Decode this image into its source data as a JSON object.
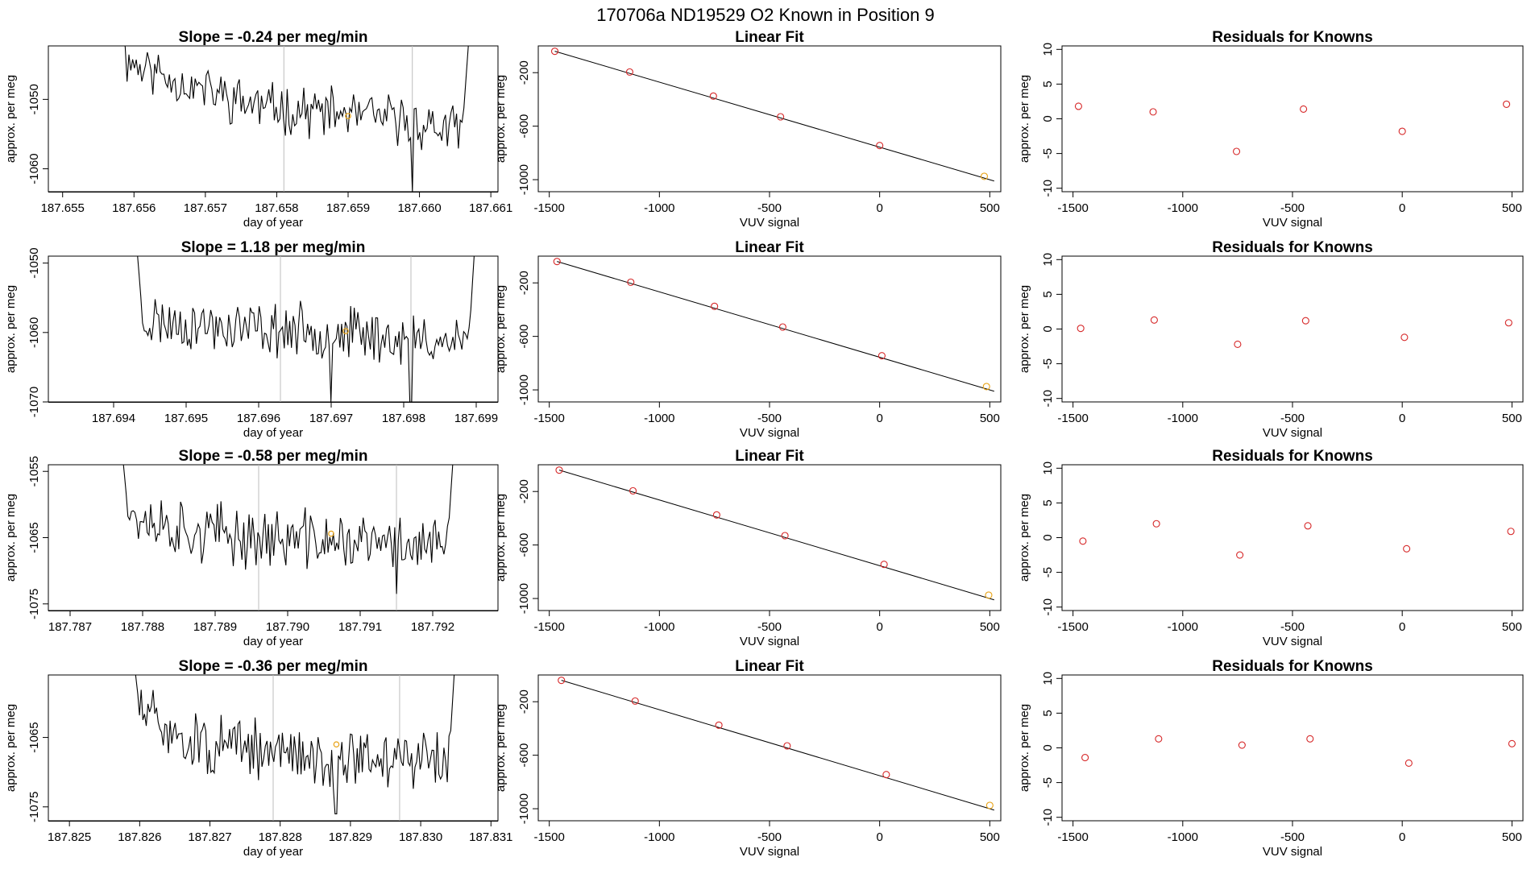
{
  "suptitle": "170706a     ND19529   O2 Known in Position  9",
  "colors": {
    "trace": "#000000",
    "marker_orange": "#e8a317",
    "marker_red": "#d62728",
    "vline": "#bdbdbd",
    "fit": "#000000"
  },
  "chart_data": [
    {
      "type": "line",
      "row": 0,
      "panel": "timeseries",
      "title": "Slope =  -0.24  per meg/min",
      "xlabel": "day of year",
      "ylabel": "approx. per meg",
      "xlim": [
        187.6548,
        187.6611
      ],
      "ylim": [
        -1063.3,
        -1042.3
      ],
      "xticks": [
        187.655,
        187.656,
        187.657,
        187.658,
        187.659,
        187.66,
        187.661
      ],
      "xtick_labels": [
        "187.655",
        "187.656",
        "187.657",
        "187.658",
        "187.659",
        "187.660",
        "187.661"
      ],
      "yticks": [
        -1050,
        -1060
      ],
      "ytick_labels": [
        "-1050",
        "-1060"
      ],
      "vlines": [
        187.6581,
        187.6599
      ],
      "series_start": 187.6558,
      "series_end": 187.6607,
      "trend": [
        -1044,
        -1048,
        -1051,
        -1052,
        -1053,
        -1055
      ],
      "levels": [
        -1051.5,
        -1053.5,
        -1055.5
      ],
      "spikes": {
        "start": -1038,
        "end": -1040
      },
      "noise": 2.8,
      "seed": 11,
      "dips": [
        {
          "x": 187.6599,
          "y": -1063.3
        }
      ],
      "marker": {
        "x": 187.659,
        "y": -1052.4
      }
    },
    {
      "type": "line",
      "row": 1,
      "panel": "timeseries",
      "title": "Slope =  1.18  per meg/min",
      "xlabel": "day of year",
      "ylabel": "approx. per meg",
      "xlim": [
        187.6931,
        187.6993
      ],
      "ylim": [
        -1070,
        -1049
      ],
      "xticks": [
        187.694,
        187.695,
        187.696,
        187.697,
        187.698,
        187.699
      ],
      "xtick_labels": [
        "187.694",
        "187.695",
        "187.696",
        "187.697",
        "187.698",
        "187.699"
      ],
      "yticks": [
        -1050,
        -1060,
        -1070
      ],
      "ytick_labels": [
        "-1050",
        "-1060",
        "-1070"
      ],
      "vlines": [
        187.6963,
        187.6981
      ],
      "series_start": 187.6943,
      "series_end": 187.699,
      "trend": [
        -1058,
        -1059,
        -1059.5,
        -1060,
        -1061,
        -1061
      ],
      "levels": [
        -1059,
        -1059.5,
        -1060.5
      ],
      "spikes": {
        "start": -1045,
        "end": -1044
      },
      "noise": 3.0,
      "seed": 23,
      "dips": [
        {
          "x": 187.697,
          "y": -1070
        },
        {
          "x": 187.6981,
          "y": -1070
        }
      ],
      "marker": {
        "x": 187.6972,
        "y": -1059.8
      }
    },
    {
      "type": "line",
      "row": 2,
      "panel": "timeseries",
      "title": "Slope =  -0.58  per meg/min",
      "xlabel": "day of year",
      "ylabel": "approx. per meg",
      "xlim": [
        187.7867,
        187.7929
      ],
      "ylim": [
        -1076,
        -1054
      ],
      "xticks": [
        187.787,
        187.788,
        187.789,
        187.79,
        187.791,
        187.792
      ],
      "xtick_labels": [
        "187.787",
        "187.788",
        "187.789",
        "187.790",
        "187.791",
        "187.792"
      ],
      "yticks": [
        -1055,
        -1065,
        -1075
      ],
      "ytick_labels": [
        "-1055",
        "-1065",
        "-1075"
      ],
      "vlines": [
        187.7896,
        187.7915
      ],
      "series_start": 187.7877,
      "series_end": 187.7923,
      "trend": [
        -1061,
        -1064,
        -1065,
        -1065.5,
        -1066,
        -1066
      ],
      "levels": [
        -1064.5,
        -1065.5,
        -1066
      ],
      "spikes": {
        "start": -1050,
        "end": -1050
      },
      "noise": 3.6,
      "seed": 37,
      "dips": [
        {
          "x": 187.7915,
          "y": -1073.5
        }
      ],
      "marker": {
        "x": 187.7906,
        "y": -1064.4
      }
    },
    {
      "type": "line",
      "row": 3,
      "panel": "timeseries",
      "title": "Slope =  -0.36  per meg/min",
      "xlabel": "day of year",
      "ylabel": "approx. per meg",
      "xlim": [
        187.8247,
        187.8311
      ],
      "ylim": [
        -1077,
        -1056
      ],
      "xticks": [
        187.825,
        187.826,
        187.827,
        187.828,
        187.829,
        187.83,
        187.831
      ],
      "xtick_labels": [
        "187.825",
        "187.826",
        "187.827",
        "187.828",
        "187.829",
        "187.830",
        "187.831"
      ],
      "yticks": [
        -1065,
        -1075
      ],
      "ytick_labels": [
        "-1065",
        "-1075"
      ],
      "vlines": [
        187.8279,
        187.8297
      ],
      "series_start": 187.8259,
      "series_end": 187.8305,
      "trend": [
        -1061,
        -1066,
        -1067,
        -1068,
        -1068,
        -1068
      ],
      "levels": [
        -1066.5,
        -1067.5,
        -1068.5
      ],
      "spikes": {
        "start": -1052,
        "end": -1052
      },
      "noise": 3.4,
      "seed": 51,
      "dips": [
        {
          "x": 187.8288,
          "y": -1076
        }
      ],
      "marker": {
        "x": 187.8288,
        "y": -1066
      }
    },
    {
      "type": "scatter",
      "row": 0,
      "panel": "fit",
      "title": "Linear Fit",
      "xlabel": "VUV signal",
      "ylabel": "approx. per meg",
      "xlim": [
        -1550,
        550
      ],
      "ylim": [
        -1090,
        0
      ],
      "xticks": [
        -1500,
        -1000,
        -500,
        0,
        500
      ],
      "xtick_labels": [
        "-1500",
        "-1000",
        "-500",
        "0",
        "500"
      ],
      "yticks": [
        -200,
        -600,
        -1000
      ],
      "ytick_labels": [
        "-200",
        "-600",
        "-1000"
      ],
      "x": [
        -1475,
        -1135,
        -755,
        -450,
        0,
        475
      ],
      "y": [
        -40,
        -195,
        -375,
        -530,
        -745,
        -975
      ],
      "line": {
        "x": [
          -1475,
          520
        ],
        "y": [
          -40,
          -1010
        ]
      },
      "orange_index": 5
    },
    {
      "type": "scatter",
      "row": 1,
      "panel": "fit",
      "title": "Linear Fit",
      "xlabel": "VUV signal",
      "ylabel": "approx. per meg",
      "xlim": [
        -1550,
        550
      ],
      "ylim": [
        -1090,
        0
      ],
      "xticks": [
        -1500,
        -1000,
        -500,
        0,
        500
      ],
      "xtick_labels": [
        "-1500",
        "-1000",
        "-500",
        "0",
        "500"
      ],
      "yticks": [
        -200,
        -600,
        -1000
      ],
      "ytick_labels": [
        "-200",
        "-600",
        "-1000"
      ],
      "x": [
        -1465,
        -1130,
        -750,
        -440,
        10,
        485
      ],
      "y": [
        -40,
        -195,
        -375,
        -530,
        -745,
        -975
      ],
      "line": {
        "x": [
          -1465,
          520
        ],
        "y": [
          -40,
          -1010
        ]
      },
      "orange_index": 5
    },
    {
      "type": "scatter",
      "row": 2,
      "panel": "fit",
      "title": "Linear Fit",
      "xlabel": "VUV signal",
      "ylabel": "approx. per meg",
      "xlim": [
        -1550,
        550
      ],
      "ylim": [
        -1090,
        0
      ],
      "xticks": [
        -1500,
        -1000,
        -500,
        0,
        500
      ],
      "xtick_labels": [
        "-1500",
        "-1000",
        "-500",
        "0",
        "500"
      ],
      "yticks": [
        -200,
        -600,
        -1000
      ],
      "ytick_labels": [
        "-200",
        "-600",
        "-1000"
      ],
      "x": [
        -1455,
        -1120,
        -740,
        -430,
        20,
        495
      ],
      "y": [
        -40,
        -195,
        -375,
        -530,
        -745,
        -975
      ],
      "line": {
        "x": [
          -1455,
          520
        ],
        "y": [
          -40,
          -1010
        ]
      },
      "orange_index": 5
    },
    {
      "type": "scatter",
      "row": 3,
      "panel": "fit",
      "title": "Linear Fit",
      "xlabel": "VUV signal",
      "ylabel": "approx. per meg",
      "xlim": [
        -1550,
        550
      ],
      "ylim": [
        -1090,
        0
      ],
      "xticks": [
        -1500,
        -1000,
        -500,
        0,
        500
      ],
      "xtick_labels": [
        "-1500",
        "-1000",
        "-500",
        "0",
        "500"
      ],
      "yticks": [
        -200,
        -600,
        -1000
      ],
      "ytick_labels": [
        "-200",
        "-600",
        "-1000"
      ],
      "x": [
        -1445,
        -1110,
        -730,
        -420,
        30,
        500
      ],
      "y": [
        -40,
        -195,
        -375,
        -530,
        -745,
        -975
      ],
      "line": {
        "x": [
          -1445,
          520
        ],
        "y": [
          -40,
          -1010
        ]
      },
      "orange_index": 5
    },
    {
      "type": "scatter",
      "row": 0,
      "panel": "residuals",
      "title": "Residuals for Knowns",
      "xlabel": "VUV signal",
      "ylabel": "approx. per meg",
      "xlim": [
        -1550,
        550
      ],
      "ylim": [
        -10.5,
        10.5
      ],
      "xticks": [
        -1500,
        -1000,
        -500,
        0,
        500
      ],
      "xtick_labels": [
        "-1500",
        "-1000",
        "-500",
        "0",
        "500"
      ],
      "yticks": [
        10,
        5,
        0,
        -5,
        -10
      ],
      "ytick_labels": [
        "10",
        "5",
        "0",
        "-5",
        "-10"
      ],
      "x": [
        -1475,
        -1135,
        -755,
        -450,
        0,
        475
      ],
      "y": [
        1.8,
        1.0,
        -4.7,
        1.4,
        -1.8,
        2.1
      ]
    },
    {
      "type": "scatter",
      "row": 1,
      "panel": "residuals",
      "title": "Residuals for Knowns",
      "xlabel": "VUV signal",
      "ylabel": "approx. per meg",
      "xlim": [
        -1550,
        550
      ],
      "ylim": [
        -10.5,
        10.5
      ],
      "xticks": [
        -1500,
        -1000,
        -500,
        0,
        500
      ],
      "xtick_labels": [
        "-1500",
        "-1000",
        "-500",
        "0",
        "500"
      ],
      "yticks": [
        10,
        5,
        0,
        -5,
        -10
      ],
      "ytick_labels": [
        "10",
        "5",
        "0",
        "-5",
        "-10"
      ],
      "x": [
        -1465,
        -1130,
        -750,
        -440,
        10,
        485
      ],
      "y": [
        0.1,
        1.3,
        -2.2,
        1.2,
        -1.2,
        0.9
      ]
    },
    {
      "type": "scatter",
      "row": 2,
      "panel": "residuals",
      "title": "Residuals for Knowns",
      "xlabel": "VUV signal",
      "ylabel": "approx. per meg",
      "xlim": [
        -1550,
        550
      ],
      "ylim": [
        -10.5,
        10.5
      ],
      "xticks": [
        -1500,
        -1000,
        -500,
        0,
        500
      ],
      "xtick_labels": [
        "-1500",
        "-1000",
        "-500",
        "0",
        "500"
      ],
      "yticks": [
        10,
        5,
        0,
        -5,
        -10
      ],
      "ytick_labels": [
        "10",
        "5",
        "0",
        "-5",
        "-10"
      ],
      "x": [
        -1455,
        -1120,
        -740,
        -430,
        20,
        495
      ],
      "y": [
        -0.5,
        2.0,
        -2.5,
        1.7,
        -1.6,
        0.9
      ]
    },
    {
      "type": "scatter",
      "row": 3,
      "panel": "residuals",
      "title": "Residuals for Knowns",
      "xlabel": "VUV signal",
      "ylabel": "approx. per meg",
      "xlim": [
        -1550,
        550
      ],
      "ylim": [
        -10.5,
        10.5
      ],
      "xticks": [
        -1500,
        -1000,
        -500,
        0,
        500
      ],
      "xtick_labels": [
        "-1500",
        "-1000",
        "-500",
        "0",
        "500"
      ],
      "yticks": [
        10,
        5,
        0,
        -5,
        -10
      ],
      "ytick_labels": [
        "10",
        "5",
        "0",
        "-5",
        "-10"
      ],
      "x": [
        -1445,
        -1110,
        -730,
        -420,
        30,
        500
      ],
      "y": [
        -1.4,
        1.3,
        0.4,
        1.3,
        -2.2,
        0.6
      ]
    }
  ]
}
